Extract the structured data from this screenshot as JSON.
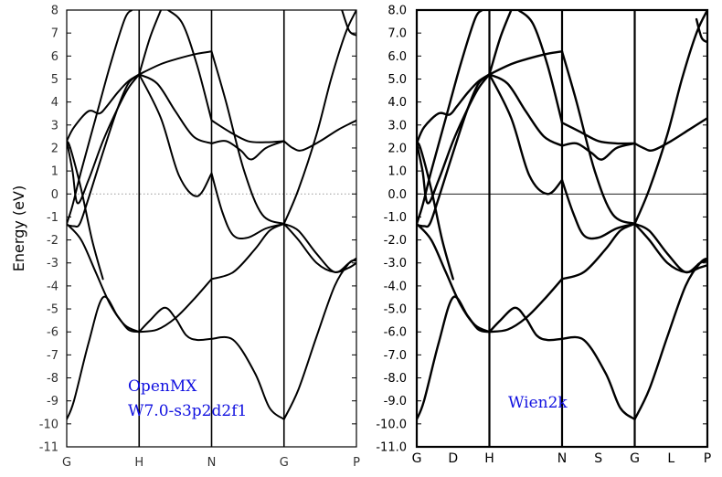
{
  "chart_data": [
    {
      "type": "line",
      "panel": "left",
      "ylabel": "Energy (eV)",
      "ylim": [
        -11,
        8
      ],
      "yticks": [
        "8",
        "7",
        "6",
        "5",
        "4",
        "3",
        "2",
        "1",
        "0",
        "-1",
        "-2",
        "-3",
        "-4",
        "-5",
        "-6",
        "-7",
        "-8",
        "-9",
        "-10",
        "-11"
      ],
      "xticks": [
        "G",
        "H",
        "N",
        "G",
        "P"
      ],
      "fermi_level": 0,
      "fermi_style": "dotted",
      "annotation": [
        "OpenMX",
        "W7.0-s3p2d2f1"
      ],
      "annotation_color": "#1010e0",
      "line_color": "#000000",
      "series": [
        {
          "x": [
            0,
            0.1,
            0.3,
            0.5,
            0.7,
            0.85,
            1.0
          ],
          "y": [
            -9.8,
            -9.0,
            -6.5,
            -4.5,
            -5.3,
            -5.9,
            -6.0
          ]
        },
        {
          "x": [
            0,
            0.2,
            0.4,
            0.6,
            0.8,
            1.0
          ],
          "y": [
            -1.3,
            -2.0,
            -3.4,
            -4.8,
            -5.7,
            -6.0
          ]
        },
        {
          "x": [
            0,
            0.1,
            0.18,
            0.3,
            0.5,
            0.7,
            0.85,
            1.0
          ],
          "y": [
            -1.35,
            -1.4,
            -1.3,
            -0.2,
            1.8,
            3.7,
            4.8,
            5.2
          ]
        },
        {
          "x": [
            0,
            0.08,
            0.15,
            0.3,
            0.5,
            0.7,
            0.85,
            1.0
          ],
          "y": [
            2.3,
            1.0,
            -0.4,
            0.6,
            2.3,
            3.7,
            4.6,
            5.2
          ]
        },
        {
          "x": [
            0,
            0.1,
            0.3,
            0.45,
            0.55,
            0.7,
            0.85,
            1.0
          ],
          "y": [
            2.3,
            2.9,
            3.6,
            3.5,
            3.8,
            4.4,
            4.9,
            5.2
          ]
        },
        {
          "x": [
            0,
            0.08,
            0.2,
            0.4,
            0.6,
            0.8,
            0.9
          ],
          "y": [
            -1.3,
            -0.5,
            1.0,
            3.3,
            5.6,
            7.6,
            8.0
          ]
        },
        {
          "x": [
            0,
            0.05,
            0.2,
            0.35,
            0.5
          ],
          "y": [
            2.3,
            2.0,
            0.2,
            -2.0,
            -3.7
          ]
        },
        {
          "x": [
            1.0,
            1.15,
            1.35,
            1.5,
            1.65,
            1.8,
            2.0
          ],
          "y": [
            -6.0,
            -5.5,
            -4.95,
            -5.4,
            -6.15,
            -6.35,
            -6.3
          ]
        },
        {
          "x": [
            1.0,
            1.25,
            1.5,
            1.75,
            2.0
          ],
          "y": [
            -6.0,
            -5.9,
            -5.4,
            -4.6,
            -3.7
          ]
        },
        {
          "x": [
            1.0,
            1.3,
            1.55,
            1.8,
            2.0
          ],
          "y": [
            5.2,
            3.3,
            0.8,
            -0.1,
            0.9
          ]
        },
        {
          "x": [
            1.0,
            1.25,
            1.5,
            1.75,
            2.0
          ],
          "y": [
            5.2,
            4.8,
            3.6,
            2.5,
            2.2
          ]
        },
        {
          "x": [
            1.0,
            1.3,
            1.55,
            1.8,
            2.0
          ],
          "y": [
            5.2,
            5.65,
            5.9,
            6.1,
            6.2
          ]
        },
        {
          "x": [
            1.0,
            1.15,
            1.3
          ],
          "y": [
            5.2,
            6.8,
            8.0
          ]
        },
        {
          "x": [
            1.4,
            1.6,
            1.8,
            2.0
          ],
          "y": [
            8.0,
            7.4,
            5.6,
            3.2
          ]
        },
        {
          "x": [
            2.0,
            2.3,
            2.6,
            2.8,
            3.0
          ],
          "y": [
            -6.3,
            -6.35,
            -7.8,
            -9.3,
            -9.8
          ]
        },
        {
          "x": [
            2.0,
            2.3,
            2.6,
            2.8,
            3.0
          ],
          "y": [
            -3.7,
            -3.4,
            -2.4,
            -1.6,
            -1.3
          ]
        },
        {
          "x": [
            2.0,
            2.15,
            2.3,
            2.5,
            2.75,
            3.0
          ],
          "y": [
            0.9,
            -0.8,
            -1.8,
            -1.9,
            -1.5,
            -1.3
          ]
        },
        {
          "x": [
            2.0,
            2.2,
            2.4,
            2.55,
            2.75,
            3.0
          ],
          "y": [
            2.2,
            2.3,
            1.9,
            1.5,
            2.0,
            2.3
          ]
        },
        {
          "x": [
            2.0,
            2.25,
            2.5,
            2.75,
            3.0
          ],
          "y": [
            3.2,
            2.7,
            2.3,
            2.25,
            2.3
          ]
        },
        {
          "x": [
            2.0,
            2.2,
            2.45,
            2.7,
            3.0
          ],
          "y": [
            6.2,
            4.0,
            1.0,
            -0.9,
            -1.3
          ]
        },
        {
          "x": [
            3.0,
            3.2,
            3.45,
            3.7,
            3.9,
            4.0
          ],
          "y": [
            -9.8,
            -8.5,
            -6.2,
            -4.0,
            -3.0,
            -2.9
          ]
        },
        {
          "x": [
            3.0,
            3.2,
            3.45,
            3.7,
            3.9,
            4.0
          ],
          "y": [
            -1.3,
            -1.6,
            -2.6,
            -3.4,
            -3.0,
            -2.8
          ]
        },
        {
          "x": [
            3.0,
            3.2,
            3.45,
            3.7,
            3.9,
            4.0
          ],
          "y": [
            -1.3,
            -2.0,
            -3.0,
            -3.4,
            -3.2,
            -3.0
          ]
        },
        {
          "x": [
            3.0,
            3.2,
            3.45,
            3.65,
            3.85,
            4.0
          ],
          "y": [
            -1.3,
            0.2,
            2.6,
            5.0,
            7.0,
            8.0
          ]
        },
        {
          "x": [
            3.0,
            3.12,
            3.25,
            3.5,
            3.75,
            4.0
          ],
          "y": [
            2.3,
            2.0,
            1.9,
            2.3,
            2.8,
            3.2
          ]
        },
        {
          "x": [
            3.8,
            3.9,
            4.0
          ],
          "y": [
            8.0,
            7.1,
            6.9
          ]
        }
      ]
    },
    {
      "type": "line",
      "panel": "right",
      "ylim": [
        -11,
        8
      ],
      "yticks": [
        "8.0",
        "7.0",
        "6.0",
        "5.0",
        "4.0",
        "3.0",
        "2.0",
        "1.0",
        "0.0",
        "-1.0",
        "-2.0",
        "-3.0",
        "-4.0",
        "-5.0",
        "-6.0",
        "-7.0",
        "-8.0",
        "-9.0",
        "-10.0",
        "-11.0"
      ],
      "xticks": [
        "G",
        "D",
        "H",
        "N",
        "S",
        "G",
        "L",
        "P"
      ],
      "fermi_level": 0,
      "fermi_style": "solid",
      "annotation": [
        "Wien2k"
      ],
      "annotation_color": "#1010e0",
      "line_color": "#000000",
      "series": [
        {
          "x": [
            0,
            0.1,
            0.3,
            0.5,
            0.7,
            0.85,
            1.0
          ],
          "y": [
            -9.8,
            -9.0,
            -6.5,
            -4.5,
            -5.3,
            -5.9,
            -6.0
          ]
        },
        {
          "x": [
            0,
            0.2,
            0.4,
            0.6,
            0.8,
            1.0
          ],
          "y": [
            -1.3,
            -2.0,
            -3.4,
            -4.8,
            -5.7,
            -6.0
          ]
        },
        {
          "x": [
            0,
            0.1,
            0.18,
            0.3,
            0.5,
            0.7,
            0.85,
            1.0
          ],
          "y": [
            -1.35,
            -1.4,
            -1.3,
            -0.2,
            1.8,
            3.7,
            4.8,
            5.2
          ]
        },
        {
          "x": [
            0,
            0.08,
            0.15,
            0.3,
            0.5,
            0.7,
            0.85,
            1.0
          ],
          "y": [
            2.2,
            1.0,
            -0.4,
            0.6,
            2.3,
            3.7,
            4.6,
            5.2
          ]
        },
        {
          "x": [
            0,
            0.1,
            0.3,
            0.45,
            0.55,
            0.7,
            0.85,
            1.0
          ],
          "y": [
            2.2,
            2.9,
            3.5,
            3.45,
            3.8,
            4.4,
            4.9,
            5.2
          ]
        },
        {
          "x": [
            0,
            0.08,
            0.2,
            0.4,
            0.6,
            0.8,
            0.9
          ],
          "y": [
            -1.3,
            -0.5,
            1.0,
            3.3,
            5.6,
            7.6,
            8.0
          ]
        },
        {
          "x": [
            0,
            0.05,
            0.2,
            0.35,
            0.5
          ],
          "y": [
            2.2,
            2.0,
            0.2,
            -2.0,
            -3.7
          ]
        },
        {
          "x": [
            1.0,
            1.15,
            1.35,
            1.5,
            1.65,
            1.8,
            2.0
          ],
          "y": [
            -6.0,
            -5.5,
            -4.95,
            -5.4,
            -6.15,
            -6.35,
            -6.3
          ]
        },
        {
          "x": [
            1.0,
            1.25,
            1.5,
            1.75,
            2.0
          ],
          "y": [
            -6.0,
            -5.9,
            -5.4,
            -4.6,
            -3.7
          ]
        },
        {
          "x": [
            1.0,
            1.3,
            1.55,
            1.8,
            2.0
          ],
          "y": [
            5.2,
            3.3,
            0.8,
            0.0,
            0.6
          ]
        },
        {
          "x": [
            1.0,
            1.25,
            1.5,
            1.75,
            2.0
          ],
          "y": [
            5.2,
            4.8,
            3.6,
            2.5,
            2.1
          ]
        },
        {
          "x": [
            1.0,
            1.3,
            1.55,
            1.8,
            2.0
          ],
          "y": [
            5.2,
            5.65,
            5.9,
            6.1,
            6.2
          ]
        },
        {
          "x": [
            1.0,
            1.15,
            1.3
          ],
          "y": [
            5.2,
            6.8,
            8.0
          ]
        },
        {
          "x": [
            1.4,
            1.6,
            1.8,
            2.0
          ],
          "y": [
            8.0,
            7.4,
            5.6,
            3.1
          ]
        },
        {
          "x": [
            2.0,
            2.3,
            2.6,
            2.8,
            3.0
          ],
          "y": [
            -6.3,
            -6.35,
            -7.8,
            -9.3,
            -9.8
          ]
        },
        {
          "x": [
            2.0,
            2.3,
            2.6,
            2.8,
            3.0
          ],
          "y": [
            -3.7,
            -3.4,
            -2.4,
            -1.6,
            -1.3
          ]
        },
        {
          "x": [
            2.0,
            2.15,
            2.3,
            2.5,
            2.75,
            3.0
          ],
          "y": [
            0.6,
            -0.8,
            -1.8,
            -1.9,
            -1.5,
            -1.3
          ]
        },
        {
          "x": [
            2.0,
            2.2,
            2.4,
            2.55,
            2.75,
            3.0
          ],
          "y": [
            2.1,
            2.2,
            1.8,
            1.5,
            2.0,
            2.2
          ]
        },
        {
          "x": [
            2.0,
            2.25,
            2.5,
            2.75,
            3.0
          ],
          "y": [
            3.1,
            2.7,
            2.3,
            2.2,
            2.2
          ]
        },
        {
          "x": [
            2.0,
            2.2,
            2.45,
            2.7,
            3.0
          ],
          "y": [
            6.2,
            4.0,
            1.0,
            -0.9,
            -1.3
          ]
        },
        {
          "x": [
            3.0,
            3.2,
            3.45,
            3.7,
            3.9,
            4.0
          ],
          "y": [
            -9.8,
            -8.5,
            -6.2,
            -4.0,
            -3.0,
            -2.8
          ]
        },
        {
          "x": [
            3.0,
            3.2,
            3.45,
            3.7,
            3.9,
            4.0
          ],
          "y": [
            -1.3,
            -1.6,
            -2.6,
            -3.4,
            -3.0,
            -2.9
          ]
        },
        {
          "x": [
            3.0,
            3.2,
            3.45,
            3.7,
            3.9,
            4.0
          ],
          "y": [
            -1.3,
            -2.0,
            -3.0,
            -3.4,
            -3.2,
            -3.1
          ]
        },
        {
          "x": [
            3.0,
            3.2,
            3.45,
            3.65,
            3.85,
            4.0
          ],
          "y": [
            -1.3,
            0.2,
            2.6,
            5.0,
            7.0,
            8.0
          ]
        },
        {
          "x": [
            3.0,
            3.12,
            3.25,
            3.5,
            3.75,
            4.0
          ],
          "y": [
            2.2,
            2.0,
            1.9,
            2.3,
            2.8,
            3.3
          ]
        },
        {
          "x": [
            3.85,
            3.92,
            4.0
          ],
          "y": [
            7.6,
            6.8,
            6.6
          ]
        }
      ]
    }
  ]
}
